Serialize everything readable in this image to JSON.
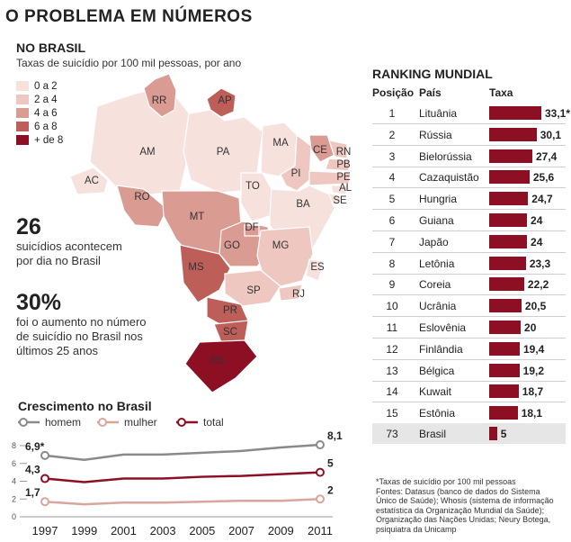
{
  "title": "O PROBLEMA EM NÚMEROS",
  "brasil": {
    "heading": "NO BRASIL",
    "subtitle": "Taxas de suicídio por 100 mil pessoas, por ano",
    "legend": [
      {
        "label": "0 a 2",
        "color": "#f6e1dd"
      },
      {
        "label": "2 a 4",
        "color": "#eec8c0"
      },
      {
        "label": "4 a 6",
        "color": "#d99b92"
      },
      {
        "label": "6 a 8",
        "color": "#bd5e58"
      },
      {
        "label": "+ de 8",
        "color": "#8c0f24"
      }
    ],
    "states": [
      {
        "code": "RR"
      },
      {
        "code": "AP"
      },
      {
        "code": "AM"
      },
      {
        "code": "PA"
      },
      {
        "code": "MA"
      },
      {
        "code": "CE"
      },
      {
        "code": "RN"
      },
      {
        "code": "PB"
      },
      {
        "code": "PE"
      },
      {
        "code": "AL"
      },
      {
        "code": "SE"
      },
      {
        "code": "PI"
      },
      {
        "code": "AC"
      },
      {
        "code": "RO"
      },
      {
        "code": "TO"
      },
      {
        "code": "BA"
      },
      {
        "code": "MT"
      },
      {
        "code": "DF"
      },
      {
        "code": "GO"
      },
      {
        "code": "MG"
      },
      {
        "code": "ES"
      },
      {
        "code": "MS"
      },
      {
        "code": "SP"
      },
      {
        "code": "RJ"
      },
      {
        "code": "PR"
      },
      {
        "code": "SC"
      },
      {
        "code": "RS"
      }
    ]
  },
  "facts": [
    {
      "number": "26",
      "text_lines": [
        "suicídios acontecem",
        "por dia no Brasil"
      ]
    },
    {
      "number": "30%",
      "text_lines": [
        "foi o aumento no número",
        "de suicídio no Brasil nos",
        "últimos 25 anos"
      ]
    }
  ],
  "chart_data": [
    {
      "type": "line",
      "title": "Crescimento no Brasil",
      "x": [
        1997,
        1999,
        2001,
        2003,
        2005,
        2007,
        2009,
        2011
      ],
      "xticks": [
        "1997",
        "1999",
        "2001",
        "2003",
        "2005",
        "2007",
        "2009",
        "2011"
      ],
      "yticks": [
        "0",
        "2",
        "4",
        "6",
        "8"
      ],
      "ylim": [
        0,
        8
      ],
      "series": [
        {
          "name": "homem",
          "color": "#8a8a8a",
          "values": [
            6.9,
            6.4,
            7.0,
            7.0,
            7.2,
            7.4,
            7.8,
            8.1
          ],
          "start_label": "6,9*",
          "end_label": "8,1"
        },
        {
          "name": "mulher",
          "color": "#d9a59c",
          "values": [
            1.7,
            1.4,
            1.6,
            1.6,
            1.7,
            1.8,
            1.8,
            2.0
          ],
          "start_label": "1,7",
          "end_label": "2"
        },
        {
          "name": "total",
          "color": "#8c0f24",
          "values": [
            4.3,
            3.9,
            4.3,
            4.3,
            4.5,
            4.6,
            4.8,
            5.0
          ],
          "start_label": "4,3",
          "end_label": "5"
        }
      ],
      "legend_position": "top",
      "grid": false
    },
    {
      "type": "bar",
      "title": "RANKING MUNDIAL",
      "headers": {
        "position": "Posição",
        "country": "País",
        "rate": "Taxa"
      },
      "rows": [
        {
          "pos": "1",
          "country": "Lituânia",
          "value": 33.1,
          "label": "33,1*"
        },
        {
          "pos": "2",
          "country": "Rússia",
          "value": 30.1,
          "label": "30,1"
        },
        {
          "pos": "3",
          "country": "Bielorússia",
          "value": 27.4,
          "label": "27,4"
        },
        {
          "pos": "4",
          "country": "Cazaquistão",
          "value": 25.6,
          "label": "25,6"
        },
        {
          "pos": "5",
          "country": "Hungria",
          "value": 24.7,
          "label": "24,7"
        },
        {
          "pos": "6",
          "country": "Guiana",
          "value": 24,
          "label": "24"
        },
        {
          "pos": "7",
          "country": "Japão",
          "value": 24,
          "label": "24"
        },
        {
          "pos": "8",
          "country": "Letônia",
          "value": 23.3,
          "label": "23,3"
        },
        {
          "pos": "9",
          "country": "Coreia",
          "value": 22.2,
          "label": "22,2"
        },
        {
          "pos": "10",
          "country": "Ucrânia",
          "value": 20.5,
          "label": "20,5"
        },
        {
          "pos": "11",
          "country": "Eslovênia",
          "value": 20,
          "label": "20"
        },
        {
          "pos": "12",
          "country": "Finlândia",
          "value": 19.4,
          "label": "19,4"
        },
        {
          "pos": "13",
          "country": "Bélgica",
          "value": 19.2,
          "label": "19,2"
        },
        {
          "pos": "14",
          "country": "Kuwait",
          "value": 18.7,
          "label": "18,7"
        },
        {
          "pos": "15",
          "country": "Estônia",
          "value": 18.1,
          "label": "18,1"
        },
        {
          "pos": "73",
          "country": "Brasil",
          "value": 5,
          "label": "5",
          "highlight": true
        }
      ]
    }
  ],
  "notes": [
    "*Taxas de suicídio por 100 mil pessoas",
    "Fontes: Datasus (banco de dados do Sistema",
    "Único de Saúde); Whosis (sistema de informação",
    "estatística da Organização Mundial da Saúde);",
    "Organização das Nações Unidas; Neury Botega,",
    "psiquiatra da Unicamp"
  ]
}
